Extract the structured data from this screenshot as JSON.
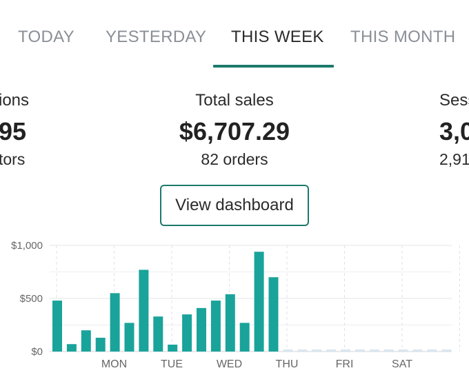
{
  "tabs": [
    {
      "label": "TODAY",
      "active": false
    },
    {
      "label": "YESTERDAY",
      "active": false
    },
    {
      "label": "THIS WEEK",
      "active": true
    },
    {
      "label": "THIS MONTH",
      "active": false
    }
  ],
  "stats": {
    "left": {
      "label": "ions",
      "value": "95",
      "sub": "tors"
    },
    "center": {
      "label": "Total sales",
      "value": "$6,707.29",
      "sub": "82 orders"
    },
    "right": {
      "label": "Sess",
      "value": "3,0",
      "sub": "2,91"
    }
  },
  "dashboard_button": "View dashboard",
  "colors": {
    "accent": "#1b7a6b",
    "bar": "#1aa39a",
    "future_bar": "#d9e6f0"
  },
  "chart_data": {
    "type": "bar",
    "ylim": [
      0,
      1000
    ],
    "yticks": [
      "$0",
      "$500",
      "$1,000"
    ],
    "ytick_values": [
      0,
      500,
      1000
    ],
    "xlabels": [
      "MON",
      "TUE",
      "WED",
      "THU",
      "FRI",
      "SAT"
    ],
    "values": [
      480,
      70,
      200,
      130,
      550,
      270,
      770,
      330,
      65,
      350,
      410,
      480,
      540,
      270,
      940,
      700
    ],
    "future_bars": 12
  }
}
